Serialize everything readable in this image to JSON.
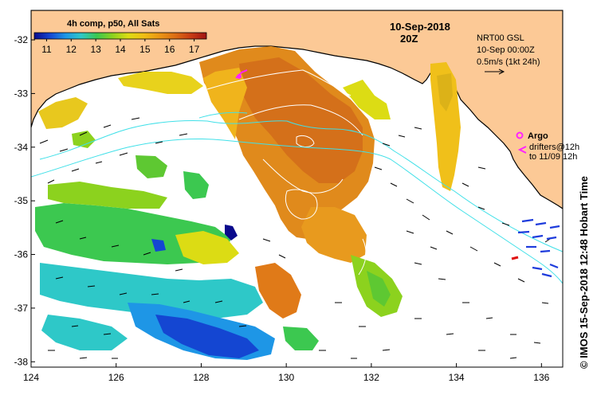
{
  "colorbar": {
    "title": "4h comp, p50, All Sats",
    "ticks": [
      "11",
      "12",
      "13",
      "14",
      "15",
      "16",
      "17"
    ],
    "min": 10.5,
    "max": 17.5,
    "colors": [
      "#0a0a8c",
      "#1446d2",
      "#1e96e6",
      "#2ec8c8",
      "#3cc850",
      "#8cd21e",
      "#dcdc14",
      "#f0be14",
      "#eb9614",
      "#dc6e14",
      "#c83c14",
      "#a01414"
    ]
  },
  "date_title": "10-Sep-2018",
  "time_title": "20Z",
  "current_info": {
    "line1": "NRT00 GSL",
    "line2": "10-Sep 00:00Z",
    "line3": "0.5m/s (1kt 24h)"
  },
  "argo_legend": {
    "argo_label": "Argo",
    "drifters_label": "drifters@12h",
    "to_label": "to 11/09 12h"
  },
  "side_label": "© IMOS 15-Sep-2018 12:48 Hobart Time",
  "x_axis": {
    "ticks": [
      "124",
      "126",
      "128",
      "130",
      "132",
      "134",
      "136"
    ],
    "range": [
      124,
      136.5
    ]
  },
  "y_axis": {
    "ticks": [
      "-32",
      "-33",
      "-34",
      "-35",
      "-36",
      "-37",
      "-38"
    ],
    "range": [
      -38.1,
      -31.45
    ]
  },
  "colors": {
    "land": "#fcc996",
    "ocean": "#ffffff",
    "current_contour": "#40e0e8",
    "sst_contour": "#ffffff",
    "argo": "#ff22ff",
    "drifter_arrow": "#1e3cdc"
  }
}
